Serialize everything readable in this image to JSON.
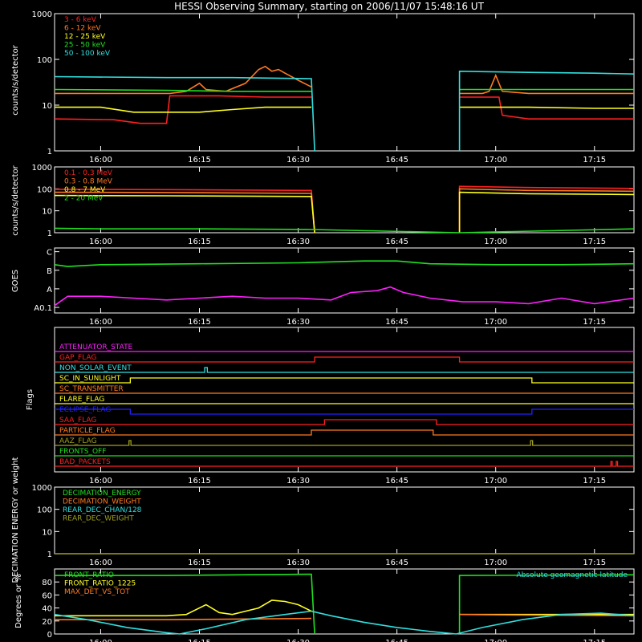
{
  "title": "HESSI Observing Summary, starting on 2006/11/07 15:48:16 UT",
  "colors": {
    "background": "#000000",
    "axes": "#ffffff",
    "red": "#ff2020",
    "orange": "#ff7a20",
    "yellow": "#ffff20",
    "green": "#20e020",
    "cyan": "#30e0e0",
    "magenta": "#ff20ff",
    "blue": "#2020ff",
    "olive": "#a0a020",
    "bright_green": "#40ff40"
  },
  "time_axis": {
    "start_minutes": 53,
    "end_minutes": 141,
    "ticks": [
      {
        "minute": 60,
        "label": "16:00"
      },
      {
        "minute": 75,
        "label": "16:15"
      },
      {
        "minute": 90,
        "label": "16:30"
      },
      {
        "minute": 105,
        "label": "16:45"
      },
      {
        "minute": 120,
        "label": "17:00"
      },
      {
        "minute": 135,
        "label": "17:15"
      }
    ]
  },
  "chart_data": [
    {
      "id": "lightcurve",
      "type": "line",
      "ylabel": "counts/s/detector",
      "yscale": "log",
      "ylim": [
        1,
        1000
      ],
      "yticks": [
        {
          "value": 1,
          "label": "1"
        },
        {
          "value": 10,
          "label": "10"
        },
        {
          "value": 100,
          "label": "100"
        },
        {
          "value": 1000,
          "label": "1000"
        }
      ],
      "gaps": [
        [
          92.5,
          114.5
        ]
      ],
      "series": [
        {
          "name": "3 - 6 keV",
          "color": "#ff2020",
          "points": [
            [
              53,
              5
            ],
            [
              62,
              4.8
            ],
            [
              66,
              4
            ],
            [
              70,
              4
            ],
            [
              70.5,
              16
            ],
            [
              75,
              16
            ],
            [
              78,
              16
            ],
            [
              85,
              15
            ],
            [
              92,
              15
            ]
          ],
          "points2": [
            [
              114.5,
              15
            ],
            [
              118,
              15
            ],
            [
              120.5,
              15
            ],
            [
              121,
              6
            ],
            [
              125,
              5
            ],
            [
              135,
              5
            ],
            [
              141,
              5
            ]
          ]
        },
        {
          "name": "6 - 12 keV",
          "color": "#ff7a20",
          "points": [
            [
              53,
              18
            ],
            [
              66,
              18
            ],
            [
              70.5,
              18
            ],
            [
              73,
              20
            ],
            [
              75,
              30
            ],
            [
              76,
              22
            ],
            [
              79,
              20
            ],
            [
              82,
              30
            ],
            [
              84,
              60
            ],
            [
              85,
              70
            ],
            [
              86,
              55
            ],
            [
              87,
              60
            ],
            [
              88,
              50
            ],
            [
              90,
              35
            ],
            [
              92,
              25
            ]
          ],
          "points2": [
            [
              114.5,
              18
            ],
            [
              118,
              18
            ],
            [
              119,
              20
            ],
            [
              120,
              45
            ],
            [
              121,
              20
            ],
            [
              125,
              18
            ],
            [
              135,
              18
            ],
            [
              141,
              18
            ]
          ]
        },
        {
          "name": "12 - 25 keV",
          "color": "#ffff20",
          "points": [
            [
              53,
              9
            ],
            [
              60,
              9
            ],
            [
              65,
              7
            ],
            [
              75,
              7
            ],
            [
              80,
              8
            ],
            [
              85,
              9
            ],
            [
              92,
              9
            ]
          ],
          "points2": [
            [
              114.5,
              9
            ],
            [
              125,
              9
            ],
            [
              135,
              8.5
            ],
            [
              141,
              8.5
            ]
          ]
        },
        {
          "name": "25 - 50 keV",
          "color": "#20e020",
          "points": [
            [
              53,
              22
            ],
            [
              70,
              21
            ],
            [
              80,
              20
            ],
            [
              92,
              20
            ]
          ],
          "points2": [
            [
              114.5,
              22
            ],
            [
              125,
              22
            ],
            [
              141,
              22
            ]
          ]
        },
        {
          "name": "50 - 100 keV",
          "color": "#30e0e0",
          "points": [
            [
              53,
              42
            ],
            [
              70,
              40
            ],
            [
              80,
              40
            ],
            [
              92,
              38
            ],
            [
              92.5,
              1
            ]
          ],
          "points2": [
            [
              114.5,
              1
            ],
            [
              114.5,
              55
            ],
            [
              125,
              52
            ],
            [
              135,
              50
            ],
            [
              141,
              48
            ]
          ]
        }
      ]
    },
    {
      "id": "high_energy",
      "type": "line",
      "ylabel": "counts/s/detector",
      "yscale": "log",
      "ylim": [
        1,
        1000
      ],
      "yticks": [
        {
          "value": 1,
          "label": "1"
        },
        {
          "value": 10,
          "label": "10"
        },
        {
          "value": 100,
          "label": "100"
        },
        {
          "value": 1000,
          "label": "1000"
        }
      ],
      "series": [
        {
          "name": "0.1 - 0.3 MeV",
          "color": "#ff2020",
          "points": [
            [
              53,
              95
            ],
            [
              70,
              92
            ],
            [
              92,
              85
            ],
            [
              92.5,
              1
            ]
          ],
          "points2": [
            [
              114.5,
              1
            ],
            [
              114.5,
              130
            ],
            [
              125,
              115
            ],
            [
              141,
              105
            ]
          ]
        },
        {
          "name": "0.3 - 0.8 MeV",
          "color": "#ff7a20",
          "points": [
            [
              53,
              70
            ],
            [
              70,
              68
            ],
            [
              92,
              62
            ],
            [
              92.5,
              1
            ]
          ],
          "points2": [
            [
              114.5,
              1
            ],
            [
              114.5,
              100
            ],
            [
              125,
              85
            ],
            [
              141,
              78
            ]
          ]
        },
        {
          "name": "0.8 - 7 MeV",
          "color": "#ffff20",
          "points": [
            [
              53,
              50
            ],
            [
              70,
              48
            ],
            [
              92,
              45
            ],
            [
              92.5,
              1
            ]
          ],
          "points2": [
            [
              114.5,
              1
            ],
            [
              114.5,
              70
            ],
            [
              125,
              60
            ],
            [
              141,
              55
            ]
          ]
        },
        {
          "name": "2 - 20 MeV",
          "color": "#20e020",
          "points": [
            [
              53,
              1.6
            ],
            [
              60,
              1.5
            ],
            [
              75,
              1.5
            ],
            [
              92,
              1.4
            ],
            [
              114.5,
              1
            ],
            [
              141,
              1.5
            ]
          ]
        }
      ]
    },
    {
      "id": "goes",
      "type": "line",
      "ylabel": "GOES",
      "ylim": [
        -0.3,
        3.2
      ],
      "yticks": [
        {
          "value": 0,
          "label": "A0.1"
        },
        {
          "value": 1,
          "label": "A"
        },
        {
          "value": 2,
          "label": "B"
        },
        {
          "value": 3,
          "label": "C"
        }
      ],
      "series": [
        {
          "name": "",
          "color": "#20e020",
          "points": [
            [
              53,
              2.3
            ],
            [
              55,
              2.2
            ],
            [
              60,
              2.3
            ],
            [
              75,
              2.35
            ],
            [
              90,
              2.4
            ],
            [
              100,
              2.5
            ],
            [
              105,
              2.5
            ],
            [
              110,
              2.35
            ],
            [
              120,
              2.3
            ],
            [
              130,
              2.3
            ],
            [
              141,
              2.35
            ]
          ]
        },
        {
          "name": "",
          "color": "#ff20ff",
          "points": [
            [
              53,
              0.1
            ],
            [
              55,
              0.6
            ],
            [
              60,
              0.6
            ],
            [
              65,
              0.5
            ],
            [
              70,
              0.4
            ],
            [
              75,
              0.5
            ],
            [
              80,
              0.6
            ],
            [
              85,
              0.5
            ],
            [
              90,
              0.5
            ],
            [
              95,
              0.4
            ],
            [
              98,
              0.8
            ],
            [
              102,
              0.9
            ],
            [
              104,
              1.1
            ],
            [
              106,
              0.8
            ],
            [
              110,
              0.5
            ],
            [
              115,
              0.3
            ],
            [
              120,
              0.3
            ],
            [
              125,
              0.2
            ],
            [
              130,
              0.5
            ],
            [
              135,
              0.2
            ],
            [
              141,
              0.5
            ]
          ]
        }
      ]
    },
    {
      "id": "flags",
      "type": "step",
      "ylabel": "Flags",
      "flags": [
        {
          "name": "ATTENUATOR_STATE",
          "color": "#ff20ff",
          "high": []
        },
        {
          "name": "GAP_FLAG",
          "color": "#ff2020",
          "high": [
            [
              92.5,
              114.5
            ]
          ]
        },
        {
          "name": "NON_SOLAR_EVENT",
          "color": "#30e0e0",
          "high": [
            [
              75.8,
              76.2
            ]
          ]
        },
        {
          "name": "SC_IN_SUNLIGHT",
          "color": "#ffff20",
          "high": [
            [
              64.5,
              125.5
            ]
          ]
        },
        {
          "name": "SC_TRANSMITTER",
          "color": "#ff7a20",
          "high": []
        },
        {
          "name": "FLARE_FLAG",
          "color": "#ffff20",
          "high": []
        },
        {
          "name": "ECLIPSE_FLAG",
          "color": "#2020ff",
          "high": [
            [
              53,
              64.5
            ],
            [
              125.5,
              141
            ]
          ]
        },
        {
          "name": "SAA_FLAG",
          "color": "#ff2020",
          "high": [
            [
              94,
              111
            ]
          ]
        },
        {
          "name": "PARTICLE_FLAG",
          "color": "#ff7a20",
          "high": [
            [
              92,
              110.5
            ]
          ]
        },
        {
          "name": "AAZ_FLAG",
          "color": "#a0a020",
          "high": [
            [
              64.3,
              64.6
            ],
            [
              125.3,
              125.6
            ]
          ]
        },
        {
          "name": "FRONTS_OFF",
          "color": "#20e020",
          "high": []
        },
        {
          "name": "BAD_PACKETS",
          "color": "#ff2020",
          "high": [
            [
              137.5,
              137.7
            ],
            [
              138.3,
              138.5
            ]
          ]
        }
      ]
    },
    {
      "id": "decimation",
      "type": "line",
      "ylabel": "DECIMATION ENERGY or weight",
      "yscale": "log",
      "ylim": [
        1,
        1000
      ],
      "yticks": [
        {
          "value": 1,
          "label": "1"
        },
        {
          "value": 10,
          "label": "10"
        },
        {
          "value": 100,
          "label": "100"
        },
        {
          "value": 1000,
          "label": "1000"
        }
      ],
      "series": [
        {
          "name": "DECIMATION_ENERGY",
          "color": "#20e020",
          "points": []
        },
        {
          "name": "DECIMATION_WEIGHT",
          "color": "#ff7a20",
          "points": []
        },
        {
          "name": "REAR_DEC_CHAN/128",
          "color": "#30e0e0",
          "points": []
        },
        {
          "name": "REAR_DEC_WEIGHT",
          "color": "#a0a020",
          "points": [
            [
              53,
              1
            ],
            [
              141,
              1
            ]
          ]
        }
      ]
    },
    {
      "id": "ratios",
      "type": "line",
      "ylabel": "Degrees or %",
      "ylim": [
        0,
        100
      ],
      "yticks": [
        {
          "value": 0,
          "label": "0"
        },
        {
          "value": 20,
          "label": "20"
        },
        {
          "value": 40,
          "label": "40"
        },
        {
          "value": 60,
          "label": "60"
        },
        {
          "value": 80,
          "label": "80"
        }
      ],
      "annotation": "Absolute geomagnetic latitude",
      "series": [
        {
          "name": "FRONT_RATIO",
          "color": "#20e020",
          "points": [
            [
              53,
              90
            ],
            [
              70,
              90
            ],
            [
              92,
              92
            ],
            [
              92.5,
              0
            ]
          ],
          "points2": [
            [
              114.5,
              0
            ],
            [
              114.5,
              90
            ],
            [
              141,
              91
            ]
          ]
        },
        {
          "name": "FRONT_RATIO_1225",
          "color": "#ffff20",
          "points": [
            [
              53,
              28
            ],
            [
              65,
              28
            ],
            [
              70,
              28
            ],
            [
              73,
              30
            ],
            [
              76,
              45
            ],
            [
              78,
              33
            ],
            [
              80,
              30
            ],
            [
              84,
              40
            ],
            [
              86,
              52
            ],
            [
              88,
              50
            ],
            [
              90,
              45
            ],
            [
              92,
              35
            ]
          ],
          "points2": [
            [
              114.5,
              30
            ],
            [
              125,
              30
            ],
            [
              141,
              30
            ]
          ]
        },
        {
          "name": "MAX_DET_VS_TOT",
          "color": "#ff7a20",
          "points": [
            [
              53,
              22
            ],
            [
              70,
              22
            ],
            [
              92,
              24
            ]
          ],
          "points2": [
            [
              114.5,
              30
            ],
            [
              125,
              29
            ],
            [
              141,
              28
            ]
          ]
        },
        {
          "name": "",
          "color": "#30e0e0",
          "points": [
            [
              53,
              30
            ],
            [
              58,
              22
            ],
            [
              64,
              10
            ],
            [
              70,
              2
            ],
            [
              72,
              0
            ],
            [
              76,
              8
            ],
            [
              82,
              22
            ],
            [
              88,
              30
            ],
            [
              92,
              35
            ],
            [
              95,
              28
            ],
            [
              100,
              18
            ],
            [
              105,
              10
            ],
            [
              110,
              4
            ],
            [
              114,
              0
            ],
            [
              118,
              10
            ],
            [
              124,
              22
            ],
            [
              130,
              30
            ],
            [
              136,
              32
            ],
            [
              141,
              28
            ]
          ]
        }
      ]
    }
  ]
}
